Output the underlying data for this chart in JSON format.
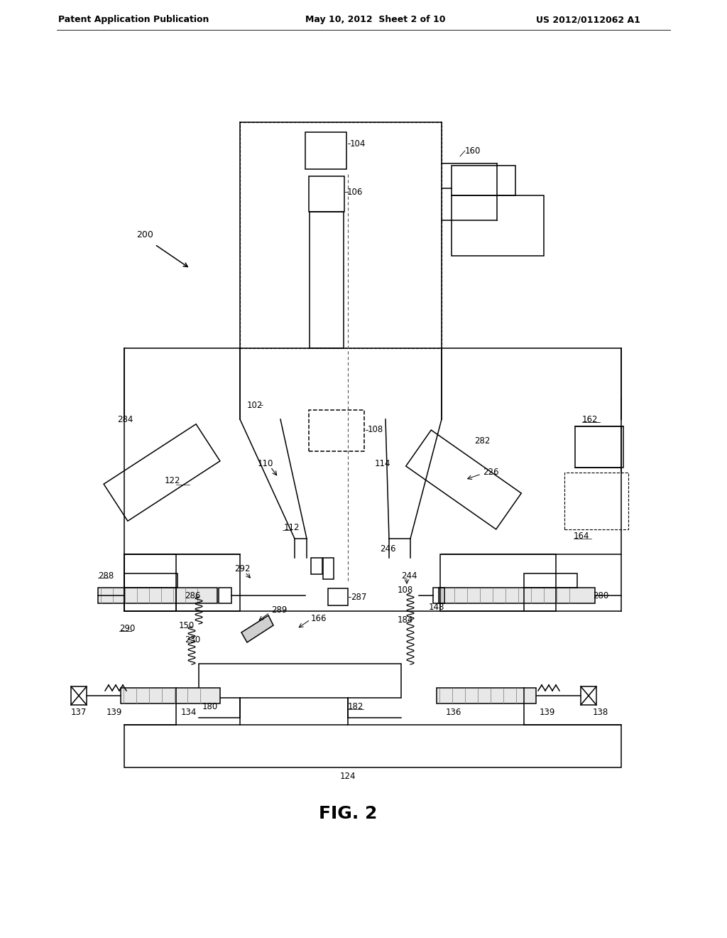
{
  "bg_color": "#ffffff",
  "header": {
    "left": "Patent Application Publication",
    "center": "May 10, 2012  Sheet 2 of 10",
    "right": "US 2012/0112062 A1"
  },
  "fig_label": "FIG. 2"
}
